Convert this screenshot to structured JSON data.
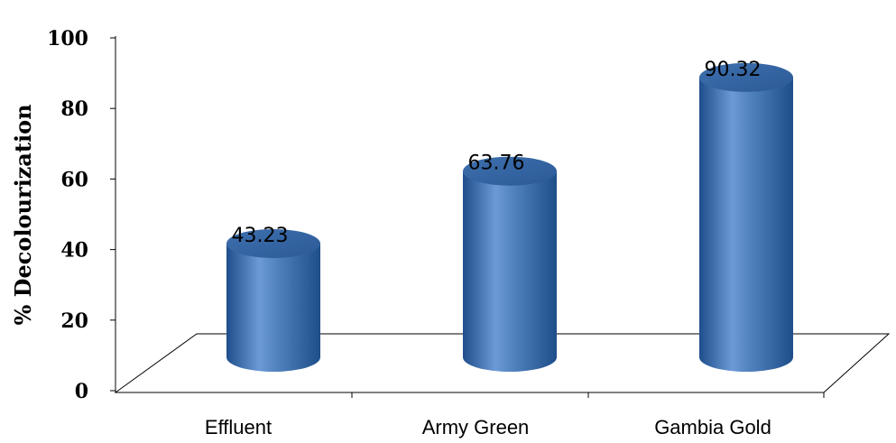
{
  "chart_data": {
    "type": "bar",
    "style": "3d-cylinder",
    "categories": [
      "Effluent",
      "Army Green",
      "Gambia Gold"
    ],
    "values": [
      43.23,
      63.76,
      90.32
    ],
    "data_labels": [
      "43.23",
      "63.76",
      "90.32"
    ],
    "title": "",
    "xlabel": "",
    "ylabel": "% Decolourization",
    "ylim": [
      0,
      100
    ],
    "yticks": [
      "0",
      "20",
      "40",
      "60",
      "80",
      "100"
    ],
    "grid": false,
    "legend": "none",
    "colors": {
      "bar": "#4F81BD",
      "bar_dark": "#1F4E8C",
      "bar_light": "#8EB4E3"
    }
  }
}
